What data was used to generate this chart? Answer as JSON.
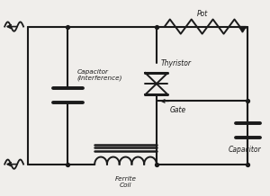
{
  "bg_color": "#f0eeeb",
  "line_color": "#1a1a1a",
  "text_color": "#1a1a1a",
  "fig_width": 3.0,
  "fig_height": 2.18,
  "dpi": 100,
  "labels": {
    "capacitor_interference": "Capacitor\n(Interference)",
    "pot": "Pot",
    "thyristor": "Thyristor",
    "gate": "Gate",
    "ferrite_coil": "Ferrite\nCoil",
    "capacitor": "Capacitor"
  }
}
